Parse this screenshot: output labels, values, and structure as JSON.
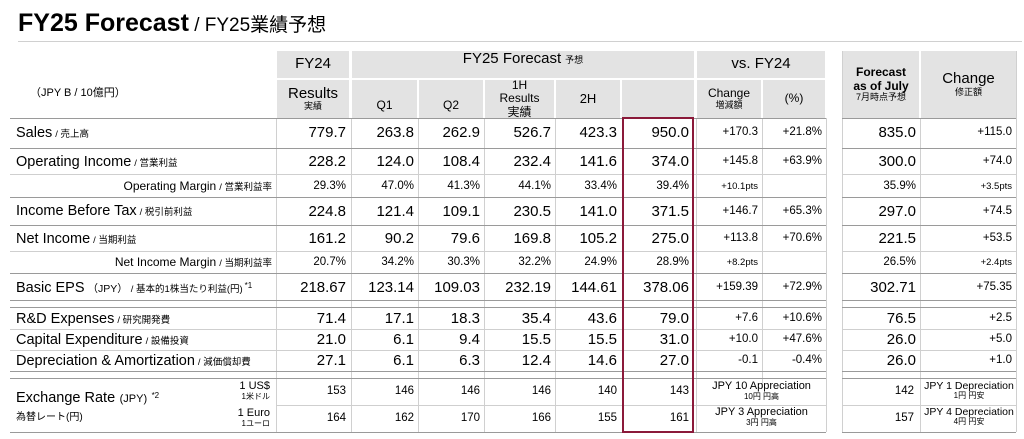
{
  "page": {
    "title_main": "FY25 Forecast",
    "title_sub": " / FY25業績予想",
    "units": "（JPY B / 10億円）"
  },
  "headers": {
    "fy24": "FY24",
    "fy24_results": "Results",
    "fy24_results_jp": "実績",
    "forecast": "FY25 Forecast",
    "forecast_jp": "予想",
    "q1": "Q1",
    "q2": "Q2",
    "h1_line1": "1H",
    "h1_line2": "Results",
    "h1_jp": "実績",
    "h2": "2H",
    "vs_fy24": "vs. FY24",
    "change": "Change",
    "change_jp": "増減額",
    "pct": "(%)",
    "july_line1": "Forecast",
    "july_line2": "as of July",
    "july_jp": "7月時点予想",
    "rev_change": "Change",
    "rev_change_jp": "修正額"
  },
  "rows": {
    "sales": {
      "en": "Sales",
      "jp": "/ 売上高",
      "fy24": "779.7",
      "q1": "263.8",
      "q2": "262.9",
      "h1": "526.7",
      "h2": "423.3",
      "fc": "950.0",
      "chg": "+170.3",
      "pct": "+21.8%",
      "july": "835.0",
      "rev": "+115.0"
    },
    "op_income": {
      "en": "Operating Income",
      "jp": "/ 営業利益",
      "fy24": "228.2",
      "q1": "124.0",
      "q2": "108.4",
      "h1": "232.4",
      "h2": "141.6",
      "fc": "374.0",
      "chg": "+145.8",
      "pct": "+63.9%",
      "july": "300.0",
      "rev": "+74.0"
    },
    "op_margin": {
      "en": "Operating Margin",
      "jp": "/ 営業利益率",
      "fy24": "29.3%",
      "q1": "47.0%",
      "q2": "41.3%",
      "h1": "44.1%",
      "h2": "33.4%",
      "fc": "39.4%",
      "chg": "+10.1pts",
      "pct": "",
      "july": "35.9%",
      "rev": "+3.5pts"
    },
    "ibt": {
      "en": "Income Before Tax",
      "jp": "/ 税引前利益",
      "fy24": "224.8",
      "q1": "121.4",
      "q2": "109.1",
      "h1": "230.5",
      "h2": "141.0",
      "fc": "371.5",
      "chg": "+146.7",
      "pct": "+65.3%",
      "july": "297.0",
      "rev": "+74.5"
    },
    "net_income": {
      "en": "Net Income",
      "jp": "/ 当期利益",
      "fy24": "161.2",
      "q1": "90.2",
      "q2": "79.6",
      "h1": "169.8",
      "h2": "105.2",
      "fc": "275.0",
      "chg": "+113.8",
      "pct": "+70.6%",
      "july": "221.5",
      "rev": "+53.5"
    },
    "ni_margin": {
      "en": "Net Income Margin",
      "jp": "/ 当期利益率",
      "fy24": "20.7%",
      "q1": "34.2%",
      "q2": "30.3%",
      "h1": "32.2%",
      "h2": "24.9%",
      "fc": "28.9%",
      "chg": "+8.2pts",
      "pct": "",
      "july": "26.5%",
      "rev": "+2.4pts"
    },
    "eps": {
      "en": "Basic EPS",
      "unit": "（JPY）",
      "jp": "/ 基本的1株当たり利益(円)",
      "note": "*1",
      "fy24": "218.67",
      "q1": "123.14",
      "q2": "109.03",
      "h1": "232.19",
      "h2": "144.61",
      "fc": "378.06",
      "chg": "+159.39",
      "pct": "+72.9%",
      "july": "302.71",
      "rev": "+75.35"
    },
    "rnd": {
      "en": "R&D Expenses",
      "jp": "/ 研究開発費",
      "fy24": "71.4",
      "q1": "17.1",
      "q2": "18.3",
      "h1": "35.4",
      "h2": "43.6",
      "fc": "79.0",
      "chg": "+7.6",
      "pct": "+10.6%",
      "july": "76.5",
      "rev": "+2.5"
    },
    "capex": {
      "en": "Capital Expenditure",
      "jp": "/ 設備投資",
      "fy24": "21.0",
      "q1": "6.1",
      "q2": "9.4",
      "h1": "15.5",
      "h2": "15.5",
      "fc": "31.0",
      "chg": "+10.0",
      "pct": "+47.6%",
      "july": "26.0",
      "rev": "+5.0"
    },
    "da": {
      "en": "Depreciation & Amortization",
      "jp": "/ 減価償却費",
      "fy24": "27.1",
      "q1": "6.1",
      "q2": "6.3",
      "h1": "12.4",
      "h2": "14.6",
      "fc": "27.0",
      "chg": "-0.1",
      "pct": "-0.4%",
      "july": "26.0",
      "rev": "+1.0"
    }
  },
  "fx": {
    "label_en": "Exchange Rate",
    "label_unit": "(JPY)",
    "label_note": "*2",
    "label_jp": "為替レート(円)",
    "usd": {
      "en": "1 US$",
      "jp": "1米ドル",
      "fy24": "153",
      "q1": "146",
      "q2": "146",
      "h1": "146",
      "h2": "140",
      "fc": "143",
      "vs_en": "JPY 10 Appreciation",
      "vs_jp": "10円 円高",
      "july": "142",
      "rev_en": "JPY 1 Depreciation",
      "rev_jp": "1円 円安"
    },
    "eur": {
      "en": "1 Euro",
      "jp": "1ユーロ",
      "fy24": "164",
      "q1": "162",
      "q2": "170",
      "h1": "166",
      "h2": "155",
      "fc": "161",
      "vs_en": "JPY 3 Appreciation",
      "vs_jp": "3円 円高",
      "july": "157",
      "rev_en": "JPY 4 Depreciation",
      "rev_jp": "4円 円安"
    }
  },
  "colors": {
    "header_bg": "#e3e3e3",
    "highlight_border": "#8b1a3a"
  }
}
